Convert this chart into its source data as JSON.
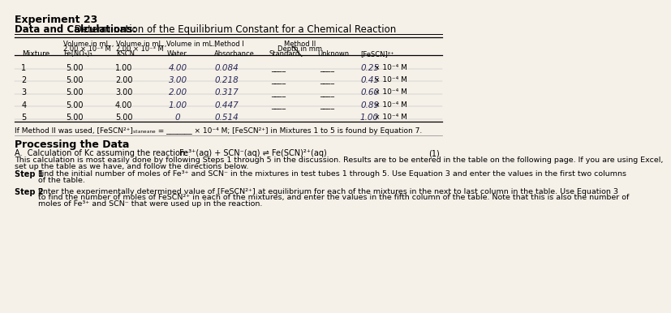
{
  "background_color": "#f5f0e8",
  "title_experiment": "Experiment 23",
  "title_main_bold": "Data and Calculations:",
  "title_main_regular": " Determination of the Equilibrium Constant for a Chemical Reaction",
  "rows": [
    {
      "mix": "1",
      "feNO3": "5.00",
      "kscn": "1.00",
      "water": "4.00",
      "absorbance": "0.084",
      "fescn_num": "0.25",
      "fescn_exp": "× 10⁻⁴ M"
    },
    {
      "mix": "2",
      "feNO3": "5.00",
      "kscn": "2.00",
      "water": "3.00",
      "absorbance": "0.218",
      "fescn_num": "0.45",
      "fescn_exp": "× 10⁻⁴ M"
    },
    {
      "mix": "3",
      "feNO3": "5.00",
      "kscn": "3.00",
      "water": "2.00",
      "absorbance": "0.317",
      "fescn_num": "0.60",
      "fescn_exp": "× 10⁻⁴ M"
    },
    {
      "mix": "4",
      "feNO3": "5.00",
      "kscn": "4.00",
      "water": "1.00",
      "absorbance": "0.447",
      "fescn_num": "0.89",
      "fescn_exp": "× 10⁻⁴ M"
    },
    {
      "mix": "5",
      "feNO3": "5.00",
      "kscn": "5.00",
      "water": "0",
      "absorbance": "0.514",
      "fescn_num": "1.00",
      "fescn_exp": "× 10⁻⁴ M"
    }
  ],
  "footnote": "If Method II was used, [FeSCN²⁺]ₛₜₐₙₑₐₙₑ = _______ × 10⁻⁴ M; [FeSCN²⁺] in Mixtures 1 to 5 is found by Equation 7.",
  "section_title": "Processing the Data",
  "section_A": "A.  Calculation of Kc assuming the reaction:",
  "equation": "Fe³⁺(aq) + SCN⁻(aq) ⇌ Fe(SCN)²⁺(aq)",
  "equation_num": "(1)",
  "paragraph1_line1": "This calculation is most easily done by following Steps 1 through 5 in the discussion. Results are to be entered in the table on the following page. If you are using Excel,",
  "paragraph1_line2": "set up the table as we have, and follow the directions below.",
  "step1_text": "Find the initial number of moles of Fe³⁺ and SCN⁻ in the mixtures in test tubes 1 through 5. Use Equation 3 and enter the values in the first two columns",
  "step1_text2": "of the table.",
  "step2_text": "Enter the experimentally determined value of [FeSCN²⁺] at equilibrium for each of the mixtures in the next to last column in the table. Use Equation 3",
  "step2_text2": "to find the number of moles of FeSCN²⁺ in each of the mixtures, and enter the values in the fifth column of the table. Note that this is also the number of",
  "step2_text3": "moles of Fe³⁺ and SCN⁻ that were used up in the reaction."
}
